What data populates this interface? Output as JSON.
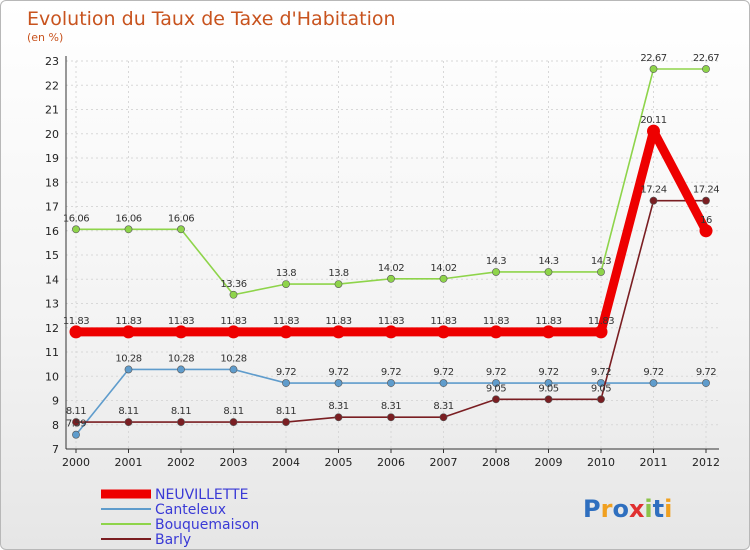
{
  "chart_data": {
    "type": "line",
    "title": "Evolution du Taux de Taxe d'Habitation",
    "subtitle": "(en %)",
    "x": [
      "2000",
      "2001",
      "2002",
      "2003",
      "2004",
      "2005",
      "2006",
      "2007",
      "2008",
      "2009",
      "2010",
      "2011",
      "2012"
    ],
    "ylim": [
      7,
      23
    ],
    "yticks": [
      7,
      8,
      9,
      10,
      11,
      12,
      13,
      14,
      15,
      16,
      17,
      18,
      19,
      20,
      21,
      22,
      23
    ],
    "grid": true,
    "legend_position": "bottom-left",
    "series": [
      {
        "name": "NEUVILLETTE",
        "color": "#ee0000",
        "values": [
          11.83,
          11.83,
          11.83,
          11.83,
          11.83,
          11.83,
          11.83,
          11.83,
          11.83,
          11.83,
          11.83,
          20.11,
          16
        ],
        "labels": [
          "11.83",
          "11.83",
          "11.83",
          "11.83",
          "11.83",
          "11.83",
          "11.83",
          "11.83",
          "11.83",
          "11.83",
          "11.83",
          "20.11",
          "16"
        ]
      },
      {
        "name": "Canteleux",
        "color": "#5f9ccc",
        "values": [
          7.59,
          10.28,
          10.28,
          10.28,
          9.72,
          9.72,
          9.72,
          9.72,
          9.72,
          9.72,
          9.72,
          9.72,
          9.72
        ],
        "labels": [
          "7.59",
          "10.28",
          "10.28",
          "10.28",
          "9.72",
          "9.72",
          "9.72",
          "9.72",
          "9.72",
          "9.72",
          "9.72",
          "9.72",
          "9.72"
        ]
      },
      {
        "name": "Bouquemaison",
        "color": "#8ed44a",
        "values": [
          16.06,
          16.06,
          16.06,
          13.36,
          13.8,
          13.8,
          14.02,
          14.02,
          14.3,
          14.3,
          14.3,
          22.67,
          22.67
        ],
        "labels": [
          "16.06",
          "16.06",
          "16.06",
          "13.36",
          "13.8",
          "13.8",
          "14.02",
          "14.02",
          "14.3",
          "14.3",
          "14.3",
          "22.67",
          "22.67"
        ]
      },
      {
        "name": "Barly",
        "color": "#7a1e22",
        "values": [
          8.11,
          8.11,
          8.11,
          8.11,
          8.11,
          8.31,
          8.31,
          8.31,
          9.05,
          9.05,
          9.05,
          17.24,
          17.24
        ],
        "labels": [
          "8.11",
          "8.11",
          "8.11",
          "8.11",
          "8.11",
          "8.31",
          "8.31",
          "8.31",
          "9.05",
          "9.05",
          "9.05",
          "17.24",
          "17.24"
        ]
      }
    ]
  },
  "logo": {
    "text": "Proxiti"
  }
}
